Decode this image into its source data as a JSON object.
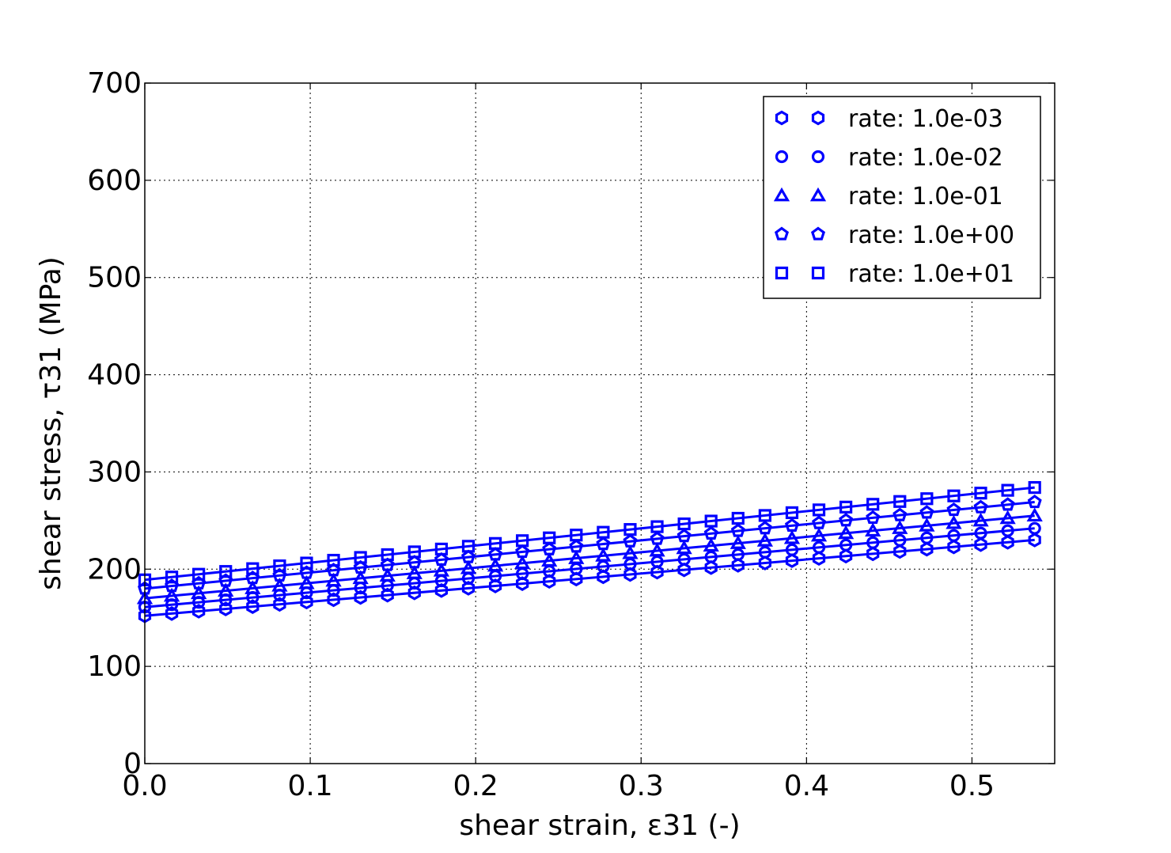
{
  "chart_data": {
    "type": "scatter",
    "xlabel": "shear strain, ε31 (-)",
    "ylabel": "shear stress, τ31 (MPa)",
    "xlim": [
      0.0,
      0.55
    ],
    "ylim": [
      0,
      700
    ],
    "xticks": [
      0.0,
      0.1,
      0.2,
      0.3,
      0.4,
      0.5
    ],
    "yticks": [
      0,
      100,
      200,
      300,
      400,
      500,
      600,
      700
    ],
    "xtick_labels": [
      "0.0",
      "0.1",
      "0.2",
      "0.3",
      "0.4",
      "0.5"
    ],
    "ytick_labels": [
      "0",
      "100",
      "200",
      "300",
      "400",
      "500",
      "600",
      "700"
    ],
    "grid": true,
    "legend_position": "top-right",
    "color": "#0000ff",
    "x": [
      0.0,
      0.0163,
      0.0326,
      0.0489,
      0.0652,
      0.0815,
      0.0978,
      0.1141,
      0.1304,
      0.1467,
      0.163,
      0.1793,
      0.1956,
      0.2119,
      0.2282,
      0.2445,
      0.2608,
      0.2771,
      0.2934,
      0.3097,
      0.326,
      0.3423,
      0.3586,
      0.3749,
      0.3912,
      0.4075,
      0.4238,
      0.4401,
      0.4564,
      0.4727,
      0.489,
      0.5053,
      0.5216,
      0.5379
    ],
    "series": [
      {
        "name": "rate: 1.0e-03",
        "marker": "hexagon",
        "y_start": 152,
        "y_end": 230
      },
      {
        "name": "rate: 1.0e-02",
        "marker": "circle",
        "y_start": 161,
        "y_end": 242
      },
      {
        "name": "rate: 1.0e-01",
        "marker": "triangle",
        "y_start": 170,
        "y_end": 255
      },
      {
        "name": "rate: 1.0e+00",
        "marker": "pentagon",
        "y_start": 180,
        "y_end": 269
      },
      {
        "name": "rate: 1.0e+01",
        "marker": "square",
        "y_start": 189,
        "y_end": 284
      }
    ]
  }
}
